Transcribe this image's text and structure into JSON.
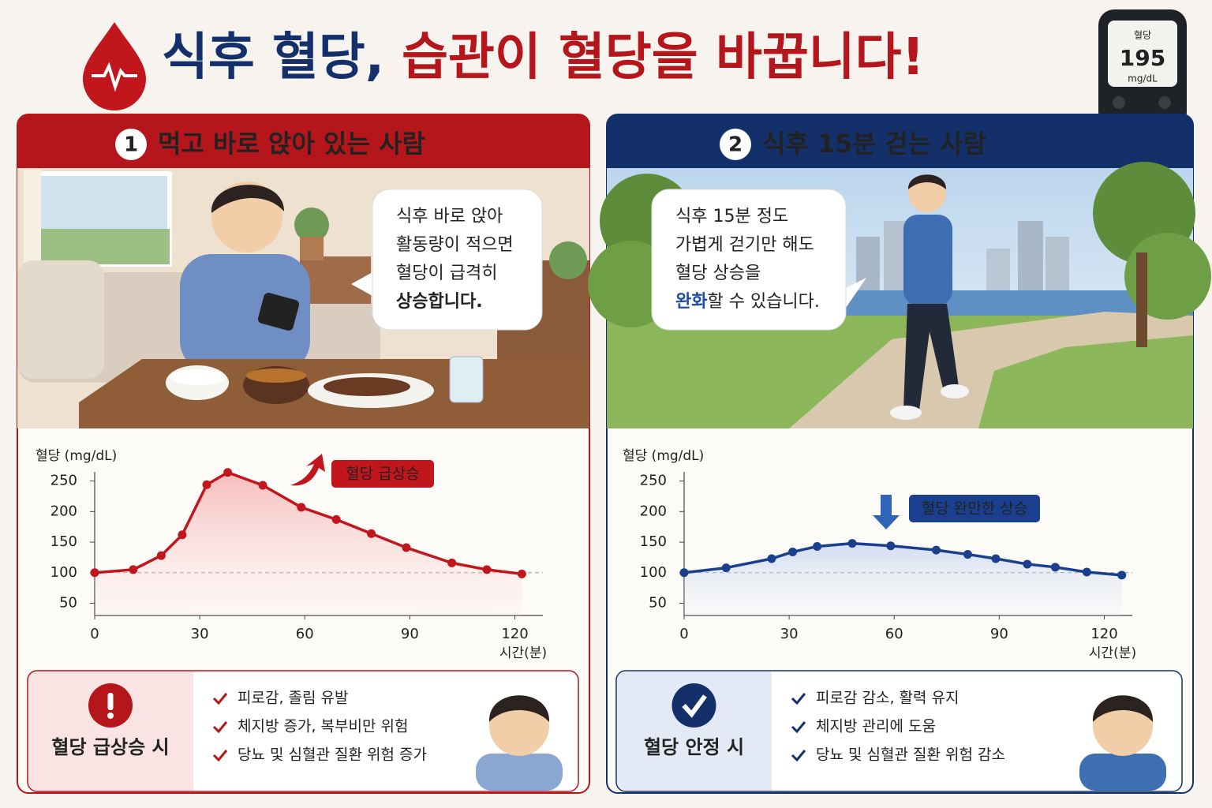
{
  "title": [
    "식후 혈당,",
    "습관이 혈당을 바꿉니다!"
  ],
  "meter": {
    "label": "혈당",
    "reading": "195",
    "unit": "mg/dL"
  },
  "panels": [
    {
      "number": "1",
      "heading": "먹고 바로 앉아 있는 사람",
      "bubble": {
        "lines": [
          "식후 바로 앉아",
          "활동량이 적으면",
          "혈당이 급격히",
          "상승합니다."
        ]
      },
      "summary": {
        "label": "혈당 급상승 시",
        "items": [
          "피로감, 졸림 유발",
          "체지방 증가, 복부비만 위험",
          "당뇨 및 심혈관 질환 위험 증가"
        ]
      }
    },
    {
      "number": "2",
      "heading": "식후 15분 걷는 사람",
      "bubble": {
        "lines": [
          "식후 15분 정도",
          "가볍게 걷기만 해도",
          "혈당 상승을"
        ],
        "highlight": "완화",
        "rest": "할 수 있습니다."
      },
      "summary": {
        "label": "혈당 안정 시",
        "items": [
          "피로감 감소, 활력 유지",
          "체지방 관리에 도움",
          "당뇨 및 심혈관 질환 위험 감소"
        ]
      }
    }
  ],
  "chart_data": [
    {
      "type": "line",
      "y_label": "혈당 (mg/dL)",
      "x_label": "시간(분)",
      "annotation": "혈당 급상승",
      "color": "#c0161c",
      "x": [
        0,
        11,
        19,
        25,
        32,
        38,
        48,
        59,
        69,
        79,
        89,
        102,
        112,
        122
      ],
      "values": [
        100,
        105,
        128,
        162,
        244,
        264,
        243,
        207,
        187,
        164,
        141,
        116,
        105,
        98
      ],
      "reference_line": 100,
      "xlim": [
        0,
        128
      ],
      "ylim": [
        30,
        265
      ],
      "xticks": [
        0,
        30,
        60,
        90,
        120
      ],
      "yticks": [
        50,
        100,
        150,
        200,
        250
      ]
    },
    {
      "type": "line",
      "y_label": "혈당 (mg/dL)",
      "x_label": "시간(분)",
      "annotation": "혈당 완만한 상승",
      "color": "#1a3f8f",
      "x": [
        0,
        12,
        25,
        31,
        38,
        48,
        59,
        72,
        81,
        89,
        98,
        106,
        115,
        125
      ],
      "values": [
        100,
        108,
        123,
        134,
        143,
        148,
        144,
        137,
        130,
        123,
        114,
        109,
        101,
        96
      ],
      "reference_line": 100,
      "xlim": [
        0,
        128
      ],
      "ylim": [
        30,
        265
      ],
      "xticks": [
        0,
        30,
        60,
        90,
        120
      ],
      "yticks": [
        50,
        100,
        150,
        200,
        250
      ]
    }
  ]
}
